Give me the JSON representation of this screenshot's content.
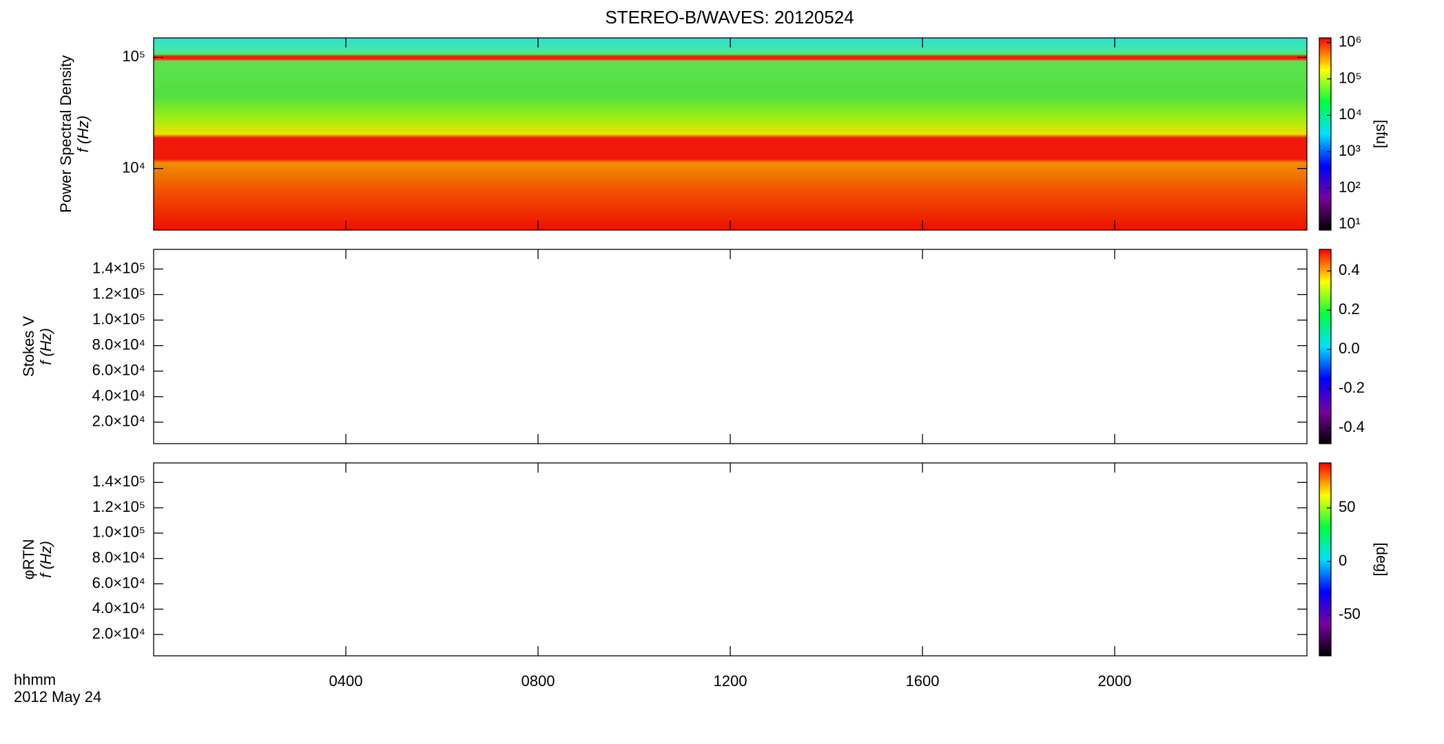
{
  "title": "STEREO-B/WAVES: 20120524",
  "time_label": "hhmm",
  "date_label": "2012 May 24",
  "chart_data": [
    {
      "type": "heatmap",
      "ylabel": [
        "Power Spectral Density",
        "f (Hz)"
      ],
      "yscale": "log",
      "ylim": [
        2790,
        150000
      ],
      "yticks": [
        {
          "value": 10000,
          "label": "10⁴"
        },
        {
          "value": 100000,
          "label": "10⁵"
        }
      ],
      "xlim": [
        0,
        24
      ],
      "colorbar": {
        "scale": "log",
        "clim": [
          7,
          1340000
        ],
        "label": "[sfu]",
        "ticks": [
          {
            "value": 10,
            "label": "10¹"
          },
          {
            "value": 100,
            "label": "10²"
          },
          {
            "value": 1000,
            "label": "10³"
          },
          {
            "value": 10000,
            "label": "10⁴"
          },
          {
            "value": 100000,
            "label": "10⁵"
          },
          {
            "value": 1000000,
            "label": "10⁶"
          }
        ],
        "colors": [
          "#000000",
          "#7a00a0",
          "#0000ff",
          "#00e0ff",
          "#00ff40",
          "#ffff00",
          "#ff0000"
        ]
      }
    },
    {
      "type": "heatmap",
      "ylabel": [
        "Stokes V",
        "f (Hz)"
      ],
      "yscale": "linear",
      "ylim": [
        3170,
        155400
      ],
      "yticks": [
        {
          "value": 20000,
          "label": "2.0×10⁴"
        },
        {
          "value": 40000,
          "label": "4.0×10⁴"
        },
        {
          "value": 60000,
          "label": "6.0×10⁴"
        },
        {
          "value": 80000,
          "label": "8.0×10⁴"
        },
        {
          "value": 100000,
          "label": "1.0×10⁵"
        },
        {
          "value": 120000,
          "label": "1.2×10⁵"
        },
        {
          "value": 140000,
          "label": "1.4×10⁵"
        }
      ],
      "xlim": [
        0,
        24
      ],
      "colorbar": {
        "scale": "linear",
        "clim": [
          -0.48,
          0.51
        ],
        "ticks": [
          {
            "value": -0.4,
            "label": "-0.4"
          },
          {
            "value": -0.2,
            "label": "-0.2"
          },
          {
            "value": 0,
            "label": "0.0"
          },
          {
            "value": 0.2,
            "label": "0.2"
          },
          {
            "value": 0.4,
            "label": "0.4"
          }
        ],
        "colors": [
          "#000000",
          "#7a00a0",
          "#0000ff",
          "#00e0ff",
          "#00ff40",
          "#ffff00",
          "#ff0000"
        ]
      }
    },
    {
      "type": "heatmap",
      "ylabel": [
        "φRTN",
        "f (Hz)"
      ],
      "yscale": "linear",
      "ylim": [
        3170,
        155400
      ],
      "yticks": [
        {
          "value": 20000,
          "label": "2.0×10⁴"
        },
        {
          "value": 40000,
          "label": "4.0×10⁴"
        },
        {
          "value": 60000,
          "label": "6.0×10⁴"
        },
        {
          "value": 80000,
          "label": "8.0×10⁴"
        },
        {
          "value": 100000,
          "label": "1.0×10⁵"
        },
        {
          "value": 120000,
          "label": "1.2×10⁵"
        },
        {
          "value": 140000,
          "label": "1.4×10⁵"
        }
      ],
      "xlim": [
        0,
        24
      ],
      "xticks": [
        {
          "value": 4,
          "label": "0400"
        },
        {
          "value": 8,
          "label": "0800"
        },
        {
          "value": 12,
          "label": "1200"
        },
        {
          "value": 16,
          "label": "1600"
        },
        {
          "value": 20,
          "label": "2000"
        }
      ],
      "colorbar": {
        "scale": "linear",
        "clim": [
          -88,
          92
        ],
        "label": "[deg]",
        "ticks": [
          {
            "value": -50,
            "label": "-50"
          },
          {
            "value": 0,
            "label": "0"
          },
          {
            "value": 50,
            "label": "50"
          }
        ],
        "colors": [
          "#000000",
          "#7a00a0",
          "#0000ff",
          "#00e0ff",
          "#00ff40",
          "#ffff00",
          "#ff0000"
        ]
      }
    }
  ]
}
